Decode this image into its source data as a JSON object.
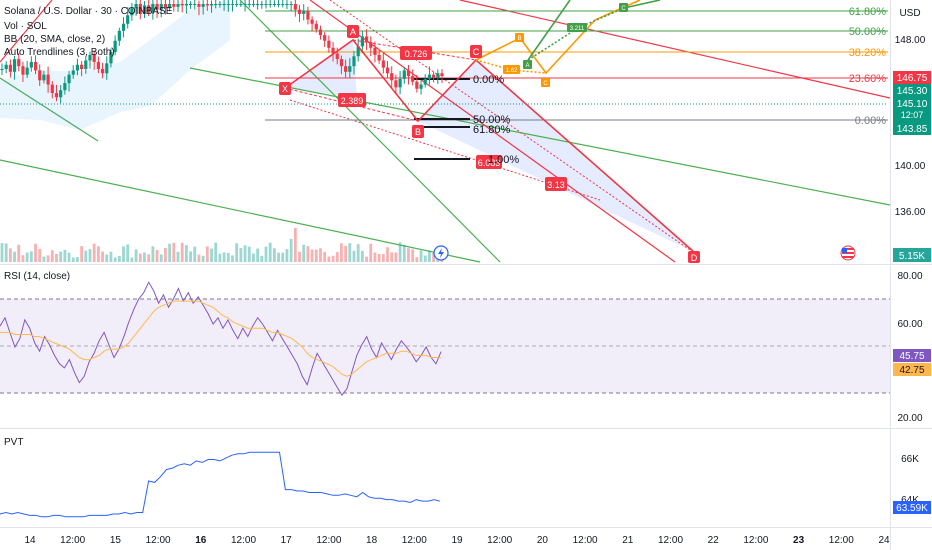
{
  "header": {
    "symbol": "Solana / U.S. Dollar · 30 · COINBASE",
    "vol_label": "Vol · SOL",
    "bb_label": "BB (20, SMA, close, 2)",
    "trend_label": "Auto Trendlines (3, Both)",
    "currency": "USD"
  },
  "rsi_pane": {
    "label": "RSI (14, close)",
    "value_rsi": "45.75",
    "value_ma": "42.75",
    "levels": [
      "80.00",
      "60.00",
      "40.00",
      "20.00"
    ]
  },
  "pvt_pane": {
    "label": "PVT",
    "value": "63.59K",
    "levels": [
      "66K",
      "64K"
    ]
  },
  "colors": {
    "green": "#089981",
    "red": "#f23645",
    "blue": "#2962ff",
    "purple": "#7e57c2",
    "orange": "#ff9800",
    "fib_green": "#43a047"
  },
  "chart_data": [
    {
      "type": "candlestick",
      "title": "Solana / U.S. Dollar · 30 · COINBASE",
      "ylim": [
        133.5,
        150.2
      ],
      "price_axis_labels": [
        "148.00",
        "140.00",
        "136.00"
      ],
      "price_badges": [
        {
          "label": "146.75",
          "color": "#f23645"
        },
        {
          "label": "145.30",
          "color": "#089981"
        },
        {
          "label": "145.10",
          "color": "#089981"
        },
        {
          "label": "12:07",
          "color": "#089981"
        },
        {
          "label": "143.85",
          "color": "#089981"
        },
        {
          "label": "5.15K",
          "color": "#26a69a"
        }
      ],
      "fib_levels": [
        {
          "label": "61.80%",
          "color": "#43a047"
        },
        {
          "label": "50.00%",
          "color": "#43a047"
        },
        {
          "label": "38.20%",
          "color": "#ff9800"
        },
        {
          "label": "23.60%",
          "color": "#f23645"
        },
        {
          "label": "0.00%",
          "color": "#787b86"
        }
      ],
      "pattern_points": [
        "X",
        "A",
        "B",
        "C",
        "D"
      ],
      "pattern_ratios": [
        "2.389",
        "0.726",
        "6.083",
        "3.13"
      ],
      "small_pattern_labels": [
        "B",
        "C",
        "D",
        "1.62",
        "3.211",
        "A",
        "C"
      ],
      "extra_labels": [
        "0.00%",
        "50.00%",
        "61.80%",
        "1.00%"
      ],
      "x_tick_labels": [
        "14",
        "12:00",
        "15",
        "12:00",
        "16",
        "12:00",
        "17",
        "12:00",
        "18",
        "12:00",
        "19",
        "12:00",
        "20",
        "12:00",
        "21",
        "12:00",
        "22",
        "12:00",
        "23",
        "12:00",
        "24"
      ],
      "series": [
        {
          "name": "SOL close",
          "values": [
            145.6,
            145.9,
            145.4,
            146.3,
            145.8,
            145.2,
            145.7,
            146.1,
            145.5,
            144.8,
            145.2,
            144.5,
            143.9,
            143.6,
            144.1,
            144.6,
            145.2,
            145.5,
            145.9,
            145.6,
            146.2,
            146.6,
            146.1,
            145.6,
            145.3,
            146.0,
            146.8,
            147.6,
            148.3,
            148.8,
            149.4,
            149.9,
            150.2,
            149.5,
            150.1,
            149.6,
            150.2,
            149.8,
            150.2,
            149.9,
            150.2,
            150.0,
            150.2,
            150.1,
            150.2,
            150.2,
            150.2,
            150.0,
            150.2,
            150.1,
            150.2,
            150.2,
            150.2,
            150.2,
            150.2,
            150.2,
            150.2,
            150.2,
            150.2,
            150.2,
            150.2,
            150.2,
            150.2,
            150.2,
            150.2,
            150.2,
            150.2,
            150.2,
            150.2,
            150.2,
            149.8,
            149.5,
            149.7,
            149.1,
            148.8,
            148.4,
            148.0,
            147.6,
            147.1,
            146.7,
            146.3,
            145.8,
            145.4,
            145.8,
            146.5,
            147.2,
            147.9,
            147.5,
            147.1,
            146.6,
            146.2,
            145.7,
            145.3,
            144.8,
            144.3,
            144.9,
            145.5,
            145.1,
            144.7,
            144.2,
            144.5,
            144.9,
            145.2,
            145.0,
            145.3,
            145.1
          ]
        }
      ]
    },
    {
      "type": "line",
      "title": "RSI (14, close)",
      "ylim": [
        15,
        82
      ],
      "series": [
        {
          "name": "RSI",
          "values": [
            58,
            62,
            55,
            48,
            52,
            61,
            57,
            50,
            46,
            53,
            49,
            44,
            40,
            38,
            42,
            36,
            31,
            34,
            41,
            45,
            51,
            55,
            49,
            43,
            47,
            53,
            60,
            66,
            71,
            74,
            79,
            75,
            69,
            73,
            67,
            71,
            76,
            70,
            74,
            69,
            72,
            68,
            64,
            59,
            62,
            57,
            61,
            56,
            52,
            57,
            53,
            58,
            62,
            59,
            55,
            51,
            56,
            52,
            48,
            44,
            40,
            34,
            30,
            38,
            45,
            41,
            37,
            33,
            29,
            25,
            28,
            36,
            44,
            49,
            53,
            47,
            43,
            50,
            46,
            42,
            47,
            51,
            48,
            45,
            41,
            44,
            48,
            43,
            40,
            45.75
          ]
        },
        {
          "name": "MA",
          "values": [
            55,
            55,
            55,
            54,
            54,
            54,
            54,
            53,
            53,
            52,
            51,
            50,
            49,
            48,
            47,
            45,
            43,
            42,
            42,
            43,
            44,
            46,
            47,
            47,
            47,
            48,
            50,
            53,
            56,
            59,
            62,
            65,
            67,
            68,
            69,
            70,
            70,
            70,
            70,
            70,
            70,
            69,
            68,
            67,
            65,
            63,
            62,
            60,
            59,
            58,
            57,
            57,
            57,
            57,
            56,
            55,
            55,
            54,
            53,
            52,
            50,
            48,
            45,
            43,
            42,
            41,
            40,
            39,
            37,
            35,
            34,
            35,
            37,
            39,
            41,
            42,
            43,
            44,
            45,
            45,
            45,
            46,
            46,
            45,
            44,
            44,
            44,
            43,
            43,
            42.75
          ]
        }
      ]
    },
    {
      "type": "line",
      "title": "PVT",
      "ylim": [
        62.0,
        68.0
      ],
      "series": [
        {
          "name": "PVT",
          "values": [
            62.7,
            62.8,
            62.7,
            62.8,
            62.7,
            62.6,
            62.6,
            62.5,
            62.5,
            62.6,
            62.6,
            62.5,
            62.5,
            62.5,
            62.5,
            62.6,
            62.6,
            62.6,
            62.6,
            62.7,
            62.7,
            62.8,
            62.7,
            62.8,
            62.8,
            65.0,
            64.9,
            65.3,
            65.8,
            65.9,
            66.1,
            66.2,
            66.1,
            66.4,
            66.3,
            66.5,
            66.5,
            66.4,
            66.6,
            66.8,
            66.9,
            66.9,
            67.0,
            67.0,
            67.0,
            67.0,
            67.0,
            67.0,
            64.4,
            64.4,
            64.3,
            64.3,
            64.2,
            64.2,
            64.2,
            64.1,
            64.0,
            64.0,
            64.1,
            64.0,
            63.9,
            64.2,
            63.9,
            63.8,
            63.8,
            63.7,
            63.7,
            63.6,
            63.6,
            63.5,
            63.7,
            63.6,
            63.6,
            63.7,
            63.59
          ]
        }
      ]
    }
  ]
}
